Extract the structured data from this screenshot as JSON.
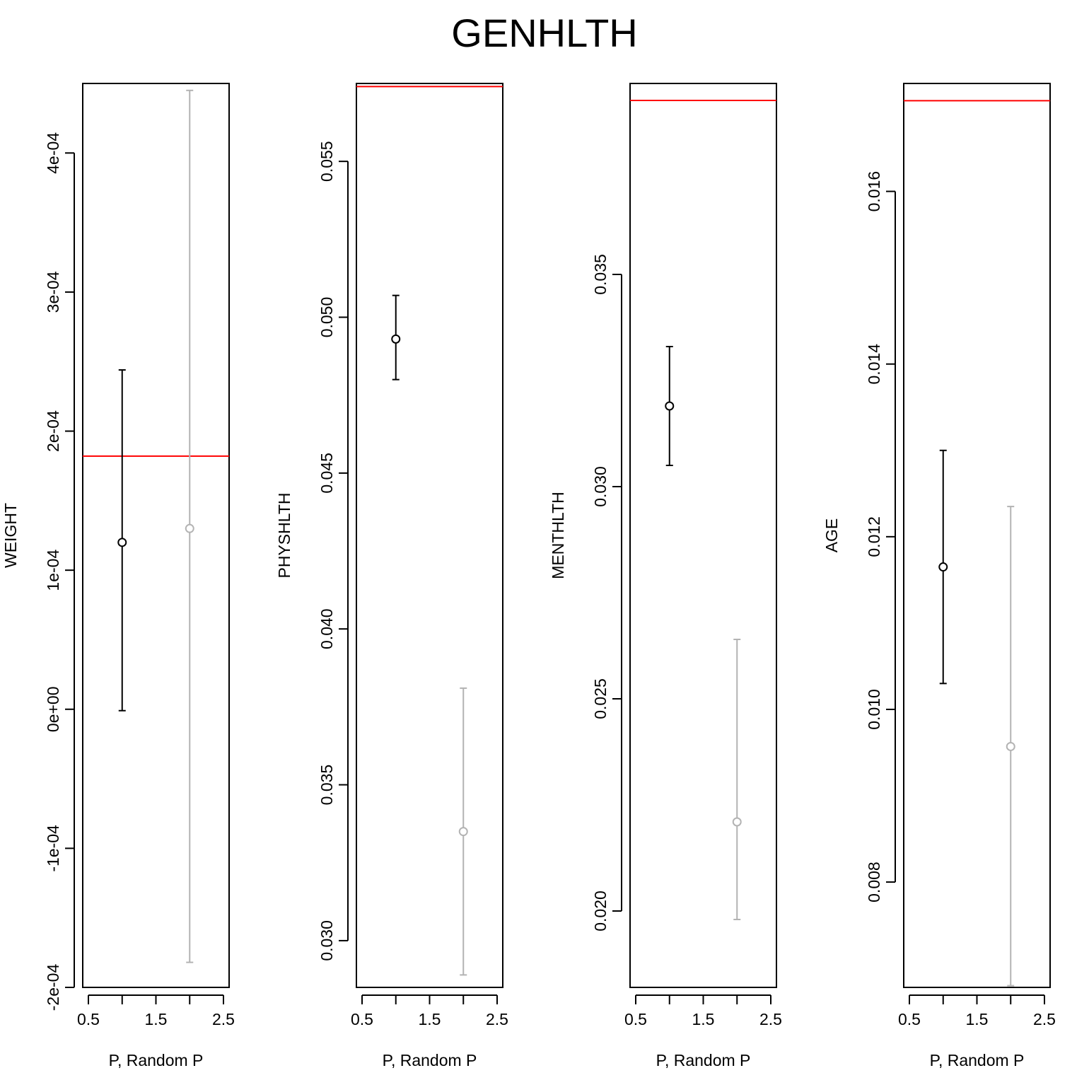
{
  "figure": {
    "title": "GENHLTH",
    "reference_line_color": "#ff0000",
    "series_colors": [
      "#000000",
      "#b3b3b3"
    ]
  },
  "chart_data": [
    {
      "type": "scatter",
      "panel": 1,
      "ylabel": "WEIGHT",
      "xlabel": "P, Random P",
      "xlim": [
        0.5,
        2.5
      ],
      "ylim": [
        -0.0002,
        0.00045
      ],
      "x_ticks": [
        0.5,
        1.5,
        2.5
      ],
      "x_tick_labels": [
        "0.5",
        "1.5",
        "2.5"
      ],
      "y_ticks": [
        -0.0002,
        -0.0001,
        0,
        0.0001,
        0.0002,
        0.0003,
        0.0004
      ],
      "y_tick_labels": [
        "-2e-04",
        "-1e-04",
        "0e+00",
        "1e-04",
        "2e-04",
        "3e-04",
        "4e-04"
      ],
      "reference_line": 0.000182,
      "points": [
        {
          "x": 1,
          "y": 0.00012,
          "lower": -1e-06,
          "upper": 0.000244
        },
        {
          "x": 2,
          "y": 0.00013,
          "lower": -0.000182,
          "upper": 0.000445
        }
      ]
    },
    {
      "type": "scatter",
      "panel": 2,
      "ylabel": "PHYSHLTH",
      "xlabel": "P, Random P",
      "xlim": [
        0.5,
        2.5
      ],
      "ylim": [
        0.0285,
        0.0575
      ],
      "x_ticks": [
        0.5,
        1.5,
        2.5
      ],
      "x_tick_labels": [
        "0.5",
        "1.5",
        "2.5"
      ],
      "y_ticks": [
        0.03,
        0.035,
        0.04,
        0.045,
        0.05,
        0.055
      ],
      "y_tick_labels": [
        "0.030",
        "0.035",
        "0.040",
        "0.045",
        "0.050",
        "0.055"
      ],
      "reference_line": 0.0574,
      "points": [
        {
          "x": 1,
          "y": 0.0493,
          "lower": 0.048,
          "upper": 0.0507
        },
        {
          "x": 2,
          "y": 0.0335,
          "lower": 0.0289,
          "upper": 0.0381
        }
      ]
    },
    {
      "type": "scatter",
      "panel": 3,
      "ylabel": "MENTHLTH",
      "xlabel": "P, Random P",
      "xlim": [
        0.5,
        2.5
      ],
      "ylim": [
        0.0182,
        0.0395
      ],
      "x_ticks": [
        0.5,
        1.5,
        2.5
      ],
      "x_tick_labels": [
        "0.5",
        "1.5",
        "2.5"
      ],
      "y_ticks": [
        0.02,
        0.025,
        0.03,
        0.035
      ],
      "y_tick_labels": [
        "0.020",
        "0.025",
        "0.030",
        "0.035"
      ],
      "reference_line": 0.0391,
      "points": [
        {
          "x": 1,
          "y": 0.0319,
          "lower": 0.0305,
          "upper": 0.0333
        },
        {
          "x": 2,
          "y": 0.0221,
          "lower": 0.0198,
          "upper": 0.0264
        }
      ]
    },
    {
      "type": "scatter",
      "panel": 4,
      "ylabel": "AGE",
      "xlabel": "P, Random P",
      "xlim": [
        0.5,
        2.5
      ],
      "ylim": [
        0.00678,
        0.01725
      ],
      "x_ticks": [
        0.5,
        1.5,
        2.5
      ],
      "x_tick_labels": [
        "0.5",
        "1.5",
        "2.5"
      ],
      "y_ticks": [
        0.008,
        0.01,
        0.012,
        0.014,
        0.016
      ],
      "y_tick_labels": [
        "0.008",
        "0.010",
        "0.012",
        "0.014",
        "0.016"
      ],
      "reference_line": 0.01705,
      "points": [
        {
          "x": 1,
          "y": 0.01165,
          "lower": 0.0103,
          "upper": 0.013
        },
        {
          "x": 2,
          "y": 0.00957,
          "lower": 0.0068,
          "upper": 0.01235
        }
      ]
    }
  ]
}
